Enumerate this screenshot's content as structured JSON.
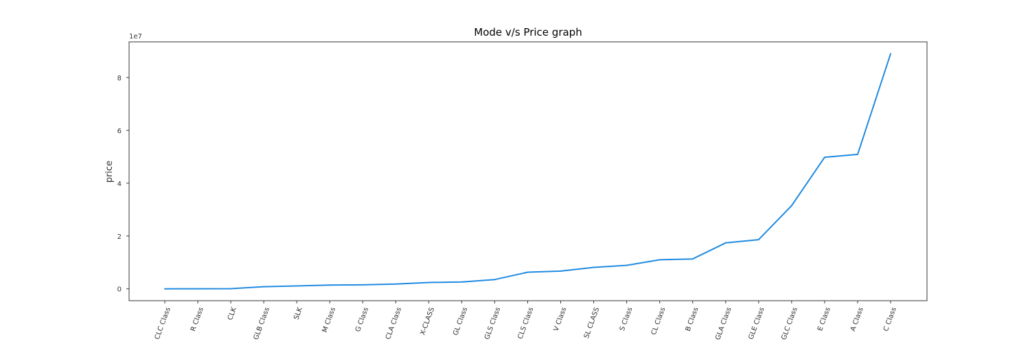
{
  "chart_data": {
    "type": "line",
    "title": "Mode v/s Price graph",
    "xlabel": "",
    "ylabel": "price",
    "y_offset_text": "1e7",
    "ylim": [
      -4500000,
      93500000
    ],
    "yticks": [
      0,
      20000000,
      40000000,
      60000000,
      80000000
    ],
    "ytick_labels": [
      "0",
      "2",
      "4",
      "6",
      "8"
    ],
    "grid": false,
    "line_color": "#1f8ae0",
    "categories": [
      "CLC Class",
      "R Class",
      "CLK",
      "GLB Class",
      "SLK",
      "M Class",
      "G Class",
      "CLA Class",
      "X-CLASS",
      "GL Class",
      "GLS Class",
      "CLS Class",
      "V Class",
      "SL CLASS",
      "S Class",
      "CL Class",
      "B Class",
      "GLA Class",
      "GLE Class",
      "GLC Class",
      "E Class",
      "A Class",
      "C Class"
    ],
    "values": [
      0,
      30000,
      60000,
      800000,
      1100000,
      1400000,
      1500000,
      1800000,
      2400000,
      2600000,
      3500000,
      6300000,
      6700000,
      8100000,
      8900000,
      11000000,
      11300000,
      17400000,
      18600000,
      31500000,
      49800000,
      50900000,
      89000000
    ]
  }
}
